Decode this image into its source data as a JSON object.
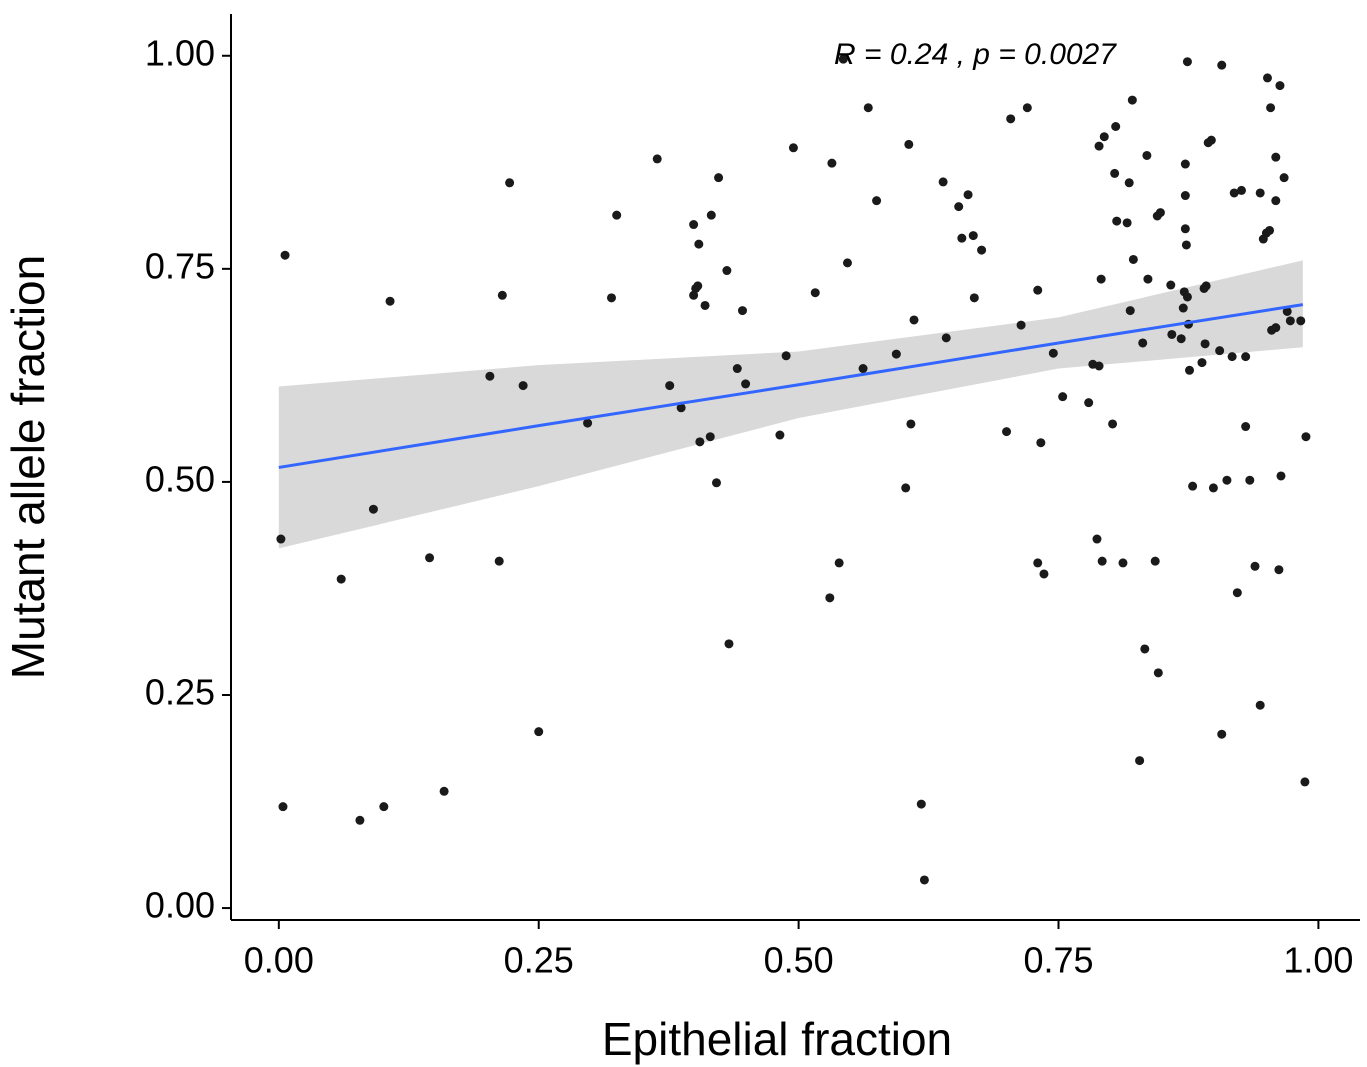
{
  "chart_data": {
    "type": "scatter",
    "x_label": "Epithelial fraction",
    "y_label": "Mutant allele fraction",
    "annotation": "R = 0.24 , p = 0.0027",
    "color": "#1a1a1a",
    "xlim": [
      -0.046,
      1.04
    ],
    "ylim": [
      -0.014,
      1.049
    ],
    "xticks": [
      {
        "value": 0,
        "label": "0.00"
      },
      {
        "value": 0.25,
        "label": "0.25"
      },
      {
        "value": 0.5,
        "label": "0.50"
      },
      {
        "value": 0.75,
        "label": "0.75"
      },
      {
        "value": 1,
        "label": "1.00"
      }
    ],
    "yticks": [
      {
        "value": 0,
        "label": "0.00"
      },
      {
        "value": 0.25,
        "label": "0.25"
      },
      {
        "value": 0.5,
        "label": "0.50"
      },
      {
        "value": 0.75,
        "label": "0.75"
      },
      {
        "value": 1,
        "label": "1.00"
      }
    ],
    "x": [
      0.002,
      0.004,
      0.006,
      0.06,
      0.078,
      0.091,
      0.101,
      0.107,
      0.145,
      0.159,
      0.203,
      0.212,
      0.215,
      0.222,
      0.235,
      0.25,
      0.297,
      0.32,
      0.325,
      0.364,
      0.376,
      0.387,
      0.399,
      0.399,
      0.401,
      0.403,
      0.404,
      0.405,
      0.41,
      0.415,
      0.416,
      0.421,
      0.423,
      0.431,
      0.433,
      0.441,
      0.446,
      0.449,
      0.482,
      0.488,
      0.495,
      0.516,
      0.53,
      0.532,
      0.539,
      0.543,
      0.547,
      0.562,
      0.567,
      0.575,
      0.594,
      0.603,
      0.606,
      0.608,
      0.611,
      0.618,
      0.621,
      0.639,
      0.642,
      0.654,
      0.657,
      0.663,
      0.668,
      0.669,
      0.676,
      0.7,
      0.704,
      0.714,
      0.72,
      0.73,
      0.73,
      0.733,
      0.736,
      0.745,
      0.754,
      0.779,
      0.783,
      0.787,
      0.789,
      0.789,
      0.791,
      0.792,
      0.794,
      0.802,
      0.804,
      0.805,
      0.806,
      0.812,
      0.816,
      0.818,
      0.819,
      0.821,
      0.822,
      0.828,
      0.831,
      0.833,
      0.835,
      0.836,
      0.843,
      0.845,
      0.846,
      0.848,
      0.858,
      0.859,
      0.868,
      0.87,
      0.871,
      0.872,
      0.872,
      0.872,
      0.873,
      0.874,
      0.874,
      0.875,
      0.876,
      0.879,
      0.888,
      0.89,
      0.891,
      0.892,
      0.894,
      0.897,
      0.899,
      0.907,
      0.907,
      0.905,
      0.912,
      0.917,
      0.919,
      0.922,
      0.926,
      0.93,
      0.93,
      0.934,
      0.939,
      0.944,
      0.944,
      0.947,
      0.95,
      0.953,
      0.951,
      0.954,
      0.955,
      0.959,
      0.959,
      0.959,
      0.962,
      0.963,
      0.964,
      0.967,
      0.97,
      0.973,
      0.983,
      0.987,
      0.988
    ],
    "values": [
      0.433,
      0.119,
      0.766,
      0.386,
      0.103,
      0.468,
      0.119,
      0.712,
      0.411,
      0.137,
      0.624,
      0.407,
      0.719,
      0.851,
      0.613,
      0.207,
      0.569,
      0.716,
      0.813,
      0.879,
      0.613,
      0.587,
      0.802,
      0.719,
      0.727,
      0.73,
      0.779,
      0.547,
      0.707,
      0.553,
      0.813,
      0.499,
      0.857,
      0.748,
      0.31,
      0.633,
      0.701,
      0.615,
      0.555,
      0.648,
      0.892,
      0.722,
      0.364,
      0.874,
      0.405,
      0.996,
      0.757,
      0.633,
      0.939,
      0.83,
      0.65,
      0.493,
      0.896,
      0.568,
      0.69,
      0.122,
      0.033,
      0.852,
      0.669,
      0.823,
      0.786,
      0.837,
      0.789,
      0.716,
      0.772,
      0.559,
      0.926,
      0.684,
      0.939,
      0.725,
      0.405,
      0.546,
      0.392,
      0.651,
      0.6,
      0.593,
      0.638,
      0.433,
      0.894,
      0.636,
      0.738,
      0.407,
      0.905,
      0.568,
      0.862,
      0.917,
      0.806,
      0.405,
      0.804,
      0.851,
      0.701,
      0.948,
      0.761,
      0.173,
      0.663,
      0.304,
      0.883,
      0.738,
      0.407,
      0.812,
      0.276,
      0.816,
      0.731,
      0.673,
      0.668,
      0.704,
      0.723,
      0.873,
      0.836,
      0.797,
      0.778,
      0.993,
      0.717,
      0.685,
      0.631,
      0.495,
      0.64,
      0.727,
      0.662,
      0.73,
      0.898,
      0.901,
      0.493,
      0.989,
      0.204,
      0.654,
      0.502,
      0.647,
      0.839,
      0.37,
      0.842,
      0.647,
      0.565,
      0.502,
      0.401,
      0.238,
      0.839,
      0.785,
      0.792,
      0.795,
      0.974,
      0.939,
      0.678,
      0.681,
      0.881,
      0.83,
      0.397,
      0.965,
      0.507,
      0.857,
      0.7,
      0.689,
      0.689,
      0.148,
      0.553
    ],
    "fit": {
      "color": "#3366ff",
      "band_color": "#d9d9d9",
      "x": [
        0,
        0.25,
        0.5,
        0.75,
        0.985
      ],
      "values": [
        0.517,
        0.566,
        0.614,
        0.663,
        0.708
      ],
      "lower": [
        0.422,
        0.495,
        0.575,
        0.633,
        0.658
      ],
      "upper": [
        0.612,
        0.637,
        0.653,
        0.693,
        0.76
      ]
    }
  }
}
